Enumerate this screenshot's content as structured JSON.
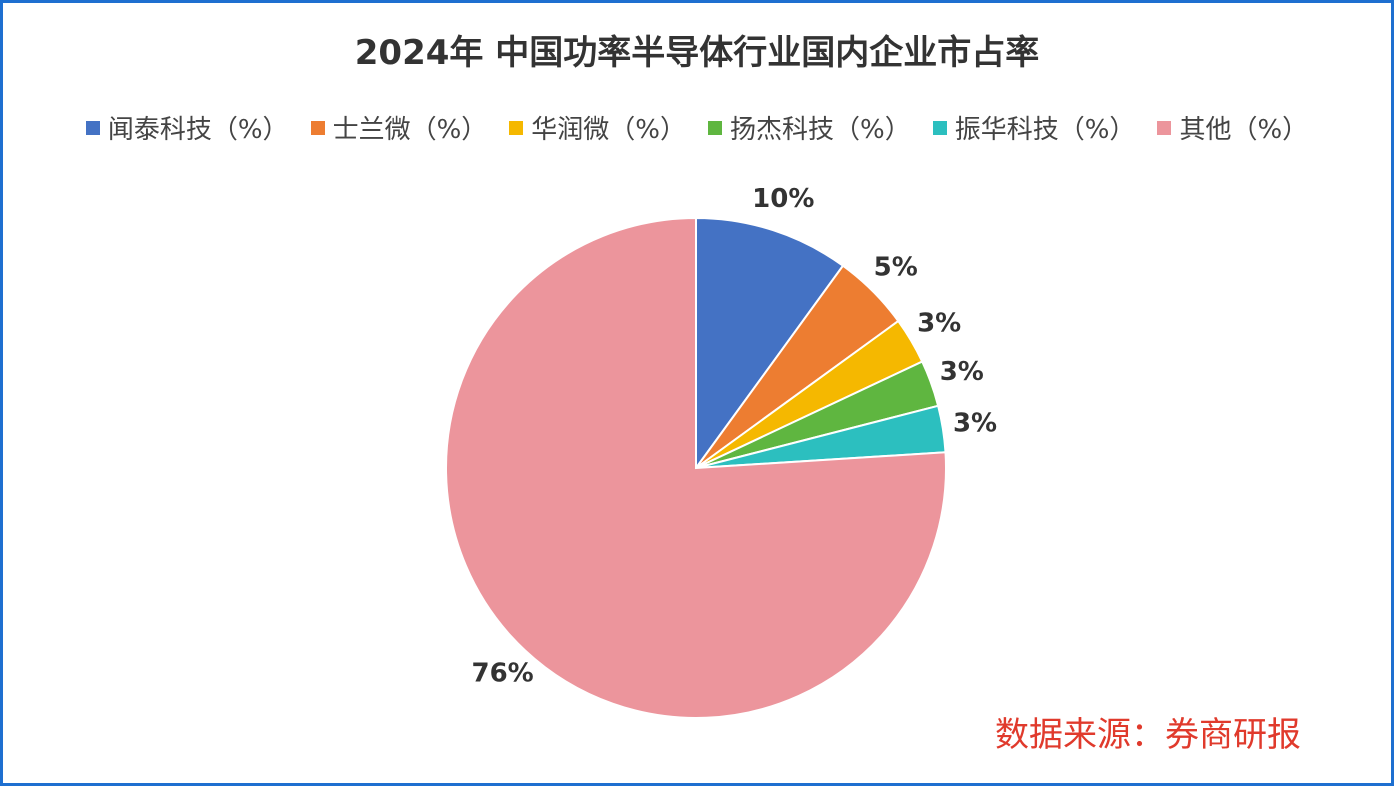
{
  "chart_data": {
    "type": "pie",
    "title": "2024年 中国功率半导体行业国内企业市占率",
    "categories": [
      "闻泰科技（%）",
      "士兰微（%）",
      "华润微（%）",
      "扬杰科技（%）",
      "振华科技（%）",
      "其他（%）"
    ],
    "values": [
      10,
      5,
      3,
      3,
      3,
      76
    ],
    "value_labels": [
      "10%",
      "5%",
      "3%",
      "3%",
      "3%",
      "76%"
    ],
    "colors": [
      "#4472c4",
      "#ed7d31",
      "#f5b800",
      "#5fb640",
      "#2cbfbf",
      "#ec959c"
    ],
    "source": "数据来源：券商研报"
  }
}
